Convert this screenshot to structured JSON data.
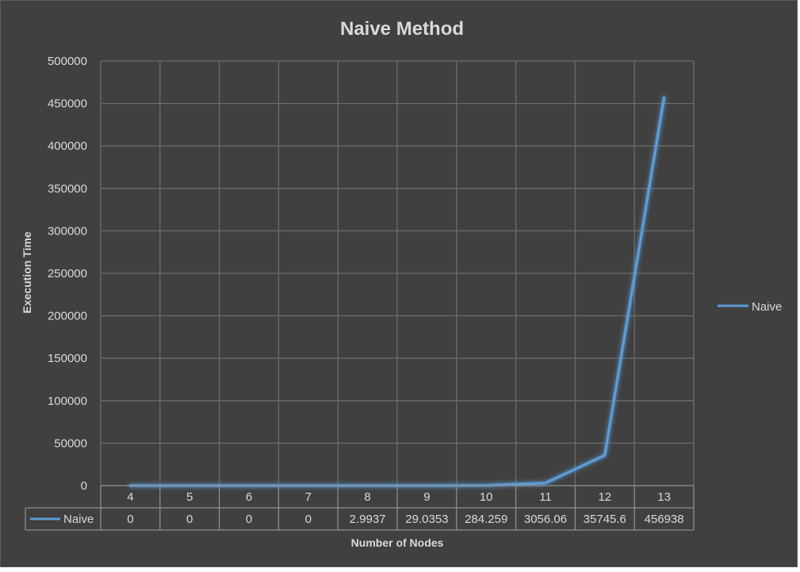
{
  "chart_data": {
    "type": "line",
    "title": "Naive Method",
    "xlabel": "Number of Nodes",
    "ylabel": "Execution Time",
    "categories": [
      "4",
      "5",
      "6",
      "7",
      "8",
      "9",
      "10",
      "11",
      "12",
      "13"
    ],
    "series": [
      {
        "name": "Naive",
        "values": [
          0,
          0,
          0,
          0,
          2.9937,
          29.0353,
          284.259,
          3056.06,
          35745.6,
          456938
        ],
        "labels": [
          "0",
          "0",
          "0",
          "0",
          "2.9937",
          "29.0353",
          "284.259",
          "3056.06",
          "35745.6",
          "456938"
        ],
        "color": "#5B9BD5"
      }
    ],
    "ylim": [
      0,
      500000
    ],
    "yticks": [
      "0",
      "50000",
      "100000",
      "150000",
      "200000",
      "250000",
      "300000",
      "350000",
      "400000",
      "450000",
      "500000"
    ],
    "grid": true,
    "legend_position": "right",
    "data_table": true
  },
  "colors": {
    "background": "#404040",
    "grid": "#6b6b6b",
    "text": "#d9d9d9",
    "line": "#5B9BD5"
  }
}
